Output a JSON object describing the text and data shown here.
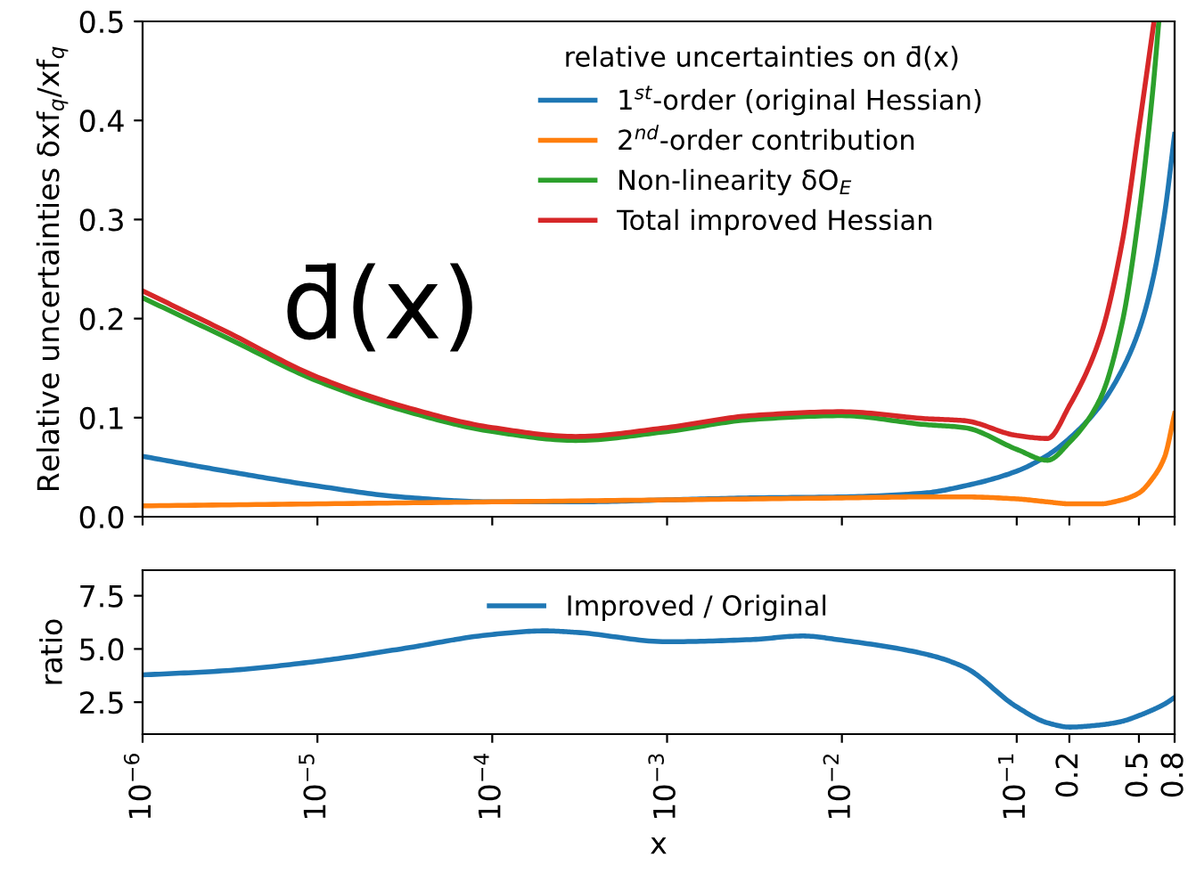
{
  "chart_data": [
    {
      "type": "line",
      "log": "x",
      "ylabel": "Relative uncertainties δxf$_{q}$/xf$_{q}$",
      "legend_title": "relative uncertainties on d̄(x)",
      "legend": "top",
      "grid": false,
      "tick_labels": "y",
      "annotations": [
        "d̄(x)"
      ],
      "xlim": [
        1e-06,
        0.8
      ],
      "ylim": [
        0,
        0.5
      ],
      "yticks": [
        {
          "value": 0,
          "label": "0.0"
        },
        0.1,
        0.2,
        0.3,
        0.4,
        0.5
      ],
      "xticks": [
        1e-06,
        1e-05,
        0.0001,
        0.001,
        0.01,
        0.1,
        0.2,
        0.5,
        0.8
      ],
      "series": [
        {
          "name": "1$^{st}$-order (original Hessian)",
          "color": "#1f77b4",
          "x": [
            1e-06,
            3e-06,
            1e-05,
            3e-05,
            0.0001,
            0.0003,
            0.001,
            0.003,
            0.01,
            0.03,
            0.05,
            0.1,
            0.15,
            0.2,
            0.3,
            0.4,
            0.5,
            0.6,
            0.7,
            0.8
          ],
          "values": [
            0.061,
            0.046,
            0.031,
            0.02,
            0.015,
            0.015,
            0.017,
            0.019,
            0.02,
            0.024,
            0.031,
            0.046,
            0.062,
            0.079,
            0.112,
            0.148,
            0.188,
            0.239,
            0.305,
            0.386
          ]
        },
        {
          "name": "2$^{nd}$-order contribution",
          "color": "#ff7f0e",
          "x": [
            1e-06,
            1e-05,
            0.0001,
            0.001,
            0.01,
            0.03,
            0.05,
            0.1,
            0.15,
            0.2,
            0.3,
            0.4,
            0.5,
            0.6,
            0.7,
            0.8
          ],
          "values": [
            0.011,
            0.013,
            0.015,
            0.017,
            0.019,
            0.02,
            0.02,
            0.018,
            0.015,
            0.013,
            0.013,
            0.017,
            0.024,
            0.039,
            0.06,
            0.104
          ]
        },
        {
          "name": "Non-linearity δO$_{E}$",
          "color": "#2ca02c",
          "x": [
            1e-06,
            3e-06,
            1e-05,
            3e-05,
            0.0001,
            0.0003,
            0.001,
            0.003,
            0.01,
            0.03,
            0.05,
            0.1,
            0.15,
            0.2,
            0.3,
            0.4,
            0.5,
            0.6,
            0.65
          ],
          "values": [
            0.221,
            0.181,
            0.137,
            0.108,
            0.086,
            0.077,
            0.086,
            0.098,
            0.102,
            0.093,
            0.09,
            0.068,
            0.057,
            0.075,
            0.119,
            0.195,
            0.305,
            0.43,
            0.5
          ]
        },
        {
          "name": "Total improved Hessian",
          "color": "#d62728",
          "x": [
            1e-06,
            3e-06,
            1e-05,
            3e-05,
            0.0001,
            0.0003,
            0.001,
            0.003,
            0.01,
            0.03,
            0.05,
            0.1,
            0.15,
            0.2,
            0.3,
            0.4,
            0.5,
            0.61
          ],
          "values": [
            0.228,
            0.187,
            0.141,
            0.112,
            0.09,
            0.081,
            0.09,
            0.102,
            0.106,
            0.099,
            0.097,
            0.082,
            0.079,
            0.112,
            0.181,
            0.276,
            0.392,
            0.5
          ]
        }
      ]
    },
    {
      "type": "line",
      "log": "x",
      "xlabel": "x",
      "ylabel": "ratio",
      "legend": "top",
      "grid": false,
      "xlim": [
        1e-06,
        0.8
      ],
      "ylim": [
        1.0,
        8.7
      ],
      "yticks": [
        2.5,
        {
          "value": 5,
          "label": "5.0"
        },
        7.5
      ],
      "xticks": [
        {
          "value": 1e-06,
          "label": "10$^{−6}$"
        },
        {
          "value": 1e-05,
          "label": "10$^{−5}$"
        },
        {
          "value": 0.0001,
          "label": "10$^{−4}$"
        },
        {
          "value": 0.001,
          "label": "10$^{−3}$"
        },
        {
          "value": 0.01,
          "label": "10$^{−2}$"
        },
        {
          "value": 0.1,
          "label": "10$^{−1}$"
        },
        0.2,
        0.5,
        0.8
      ],
      "series": [
        {
          "name": "Improved / Original",
          "color": "#1f77b4",
          "x": [
            1e-06,
            3e-06,
            1e-05,
            3e-05,
            0.0001,
            0.0002,
            0.0003,
            0.001,
            0.003,
            0.006,
            0.01,
            0.03,
            0.05,
            0.1,
            0.15,
            0.2,
            0.3,
            0.4,
            0.5,
            0.6,
            0.7,
            0.8
          ],
          "values": [
            3.78,
            3.98,
            4.42,
            5.0,
            5.68,
            5.85,
            5.78,
            5.34,
            5.44,
            5.61,
            5.41,
            4.76,
            4.15,
            2.28,
            1.53,
            1.33,
            1.43,
            1.6,
            1.87,
            2.14,
            2.41,
            2.72
          ]
        }
      ]
    }
  ]
}
